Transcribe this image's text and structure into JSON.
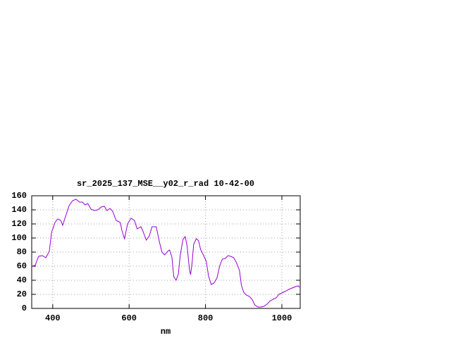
{
  "chart_data": {
    "type": "line",
    "title": "sr_2025_137_MSE__y02_r_rad 10-42-00",
    "x_label": "nm",
    "xlim": [
      345,
      1048
    ],
    "xticks": [
      400,
      600,
      800,
      1000
    ],
    "ylim": [
      0,
      160
    ],
    "yticks": [
      0,
      20,
      40,
      60,
      80,
      100,
      120,
      140,
      160
    ],
    "grid": true,
    "series": [
      {
        "color": "#9400d3",
        "x": [
          345,
          354,
          363,
          373,
          382,
          391,
          397,
          406,
          413,
          421,
          426,
          435,
          443,
          452,
          461,
          470,
          478,
          485,
          492,
          500,
          509,
          518,
          527,
          535,
          542,
          550,
          557,
          566,
          577,
          581,
          588,
          596,
          605,
          614,
          621,
          631,
          636,
          645,
          653,
          660,
          671,
          680,
          686,
          693,
          701,
          706,
          712,
          717,
          723,
          729,
          734,
          741,
          747,
          752,
          758,
          761,
          765,
          769,
          776,
          782,
          787,
          797,
          802,
          808,
          815,
          822,
          830,
          837,
          844,
          852,
          859,
          866,
          874,
          881,
          889,
          894,
          900,
          907,
          915,
          922,
          929,
          937,
          946,
          953,
          961,
          968,
          977,
          985,
          992,
          1000,
          1008,
          1018,
          1027,
          1036,
          1043,
          1046
        ],
        "values": [
          60,
          61,
          74,
          75,
          72,
          81,
          108,
          122,
          127,
          125,
          118,
          133,
          146,
          153,
          155,
          151,
          151,
          147,
          149,
          141,
          139,
          140,
          144,
          145,
          139,
          142,
          138,
          125,
          122,
          111,
          99,
          120,
          128,
          125,
          113,
          116,
          110,
          97,
          103,
          116,
          116,
          93,
          80,
          76,
          81,
          83,
          73,
          45,
          40,
          49,
          76,
          98,
          102,
          88,
          55,
          48,
          65,
          91,
          99,
          96,
          84,
          73,
          67,
          46,
          34,
          36,
          43,
          60,
          70,
          71,
          75,
          74,
          72,
          65,
          54,
          33,
          23,
          19,
          17,
          13,
          5,
          2,
          2,
          3,
          6,
          10,
          13,
          15,
          20,
          22,
          24,
          27,
          29,
          31,
          32,
          30
        ]
      }
    ]
  }
}
